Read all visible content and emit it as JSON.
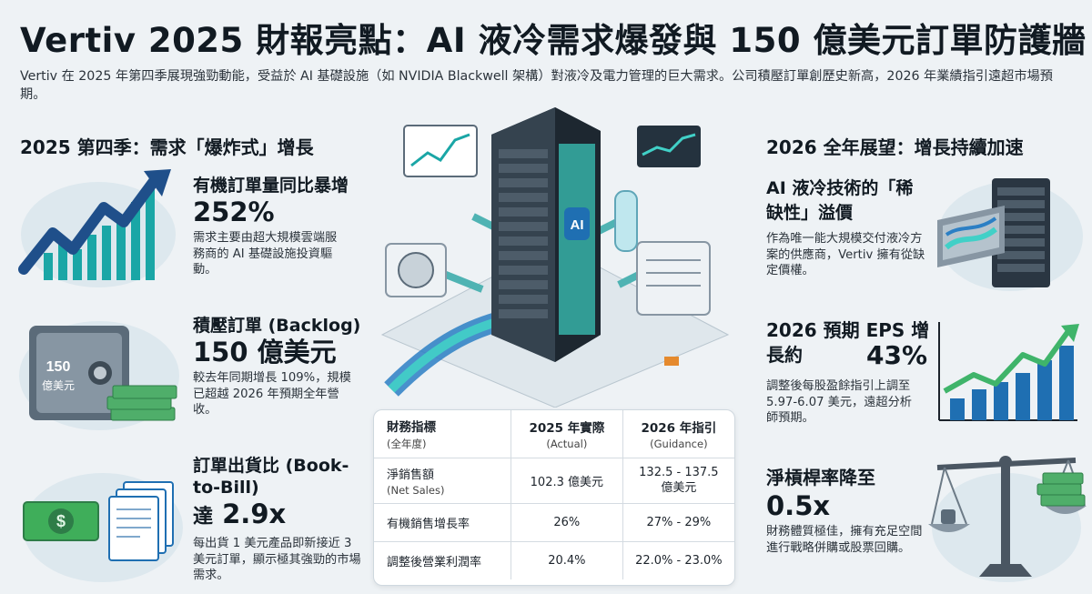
{
  "title": "Vertiv 2025 財報亮點：AI 液冷需求爆發與 150 億美元訂單防護牆",
  "intro": "Vertiv 在 2025 年第四季展現強勁動能，受益於 AI 基礎設施（如 NVIDIA Blackwell 架構）對液冷及電力管理的巨大需求。公司積壓訂單創歷史新高，2026 年業績指引遠超市場預期。",
  "left_section": {
    "heading": "2025 第四季：需求「爆炸式」增長",
    "items": [
      {
        "title": "有機訂單量同比暴增",
        "value": "252%",
        "desc": "需求主要由超大規模雲端服務商的 AI 基礎設施投資驅動。"
      },
      {
        "title": "積壓訂單 (Backlog)",
        "value": "150 億美元",
        "desc": "較去年同期增長 109%，規模已超越 2026 年預期全年營收。"
      },
      {
        "title": "訂單出貨比 (Book-to-Bill)",
        "value_prefix": "達",
        "value": "2.9x",
        "desc": "每出貨 1 美元產品即新接近 3 美元訂單，顯示極其強勁的市場需求。"
      }
    ],
    "safe_label_1": "150",
    "safe_label_2": "億美元"
  },
  "right_section": {
    "heading": "2026 全年展望：增長持續加速",
    "items": [
      {
        "title": "AI 液冷技術的「稀缺性」溢價",
        "desc": "作為唯一能大規模交付液冷方案的供應商，Vertiv 擁有從缺定價權。"
      },
      {
        "title": "2026 預期 EPS 增長約",
        "value": "43%",
        "desc": "調整後每股盈餘指引上調至 5.97-6.07 美元，遠超分析師預期。"
      },
      {
        "title": "淨槓桿率降至",
        "value": "0.5x",
        "desc": "財務體質極佳，擁有充足空間進行戰略併購或股票回購。"
      }
    ]
  },
  "center": {
    "server_label": "AI"
  },
  "table": {
    "headers": [
      {
        "label": "財務指標",
        "sub": "(全年度)"
      },
      {
        "label": "2025 年實際",
        "sub": "(Actual)"
      },
      {
        "label": "2026 年指引",
        "sub": "(Guidance)"
      }
    ],
    "rows": [
      {
        "metric": "淨銷售額",
        "metric_sub": "(Net Sales)",
        "actual": "102.3 億美元",
        "guidance": "132.5 - 137.5 億美元"
      },
      {
        "metric": "有機銷售增長率",
        "metric_sub": "",
        "actual": "26%",
        "guidance": "27% - 29%"
      },
      {
        "metric": "調整後營業利潤率",
        "metric_sub": "",
        "actual": "20.4%",
        "guidance": "22.0% - 23.0%"
      }
    ]
  },
  "colors": {
    "accent_teal": "#1aa6a6",
    "accent_blue": "#1f6fb2",
    "accent_green": "#3fb46a",
    "dark_text": "#111a22"
  }
}
